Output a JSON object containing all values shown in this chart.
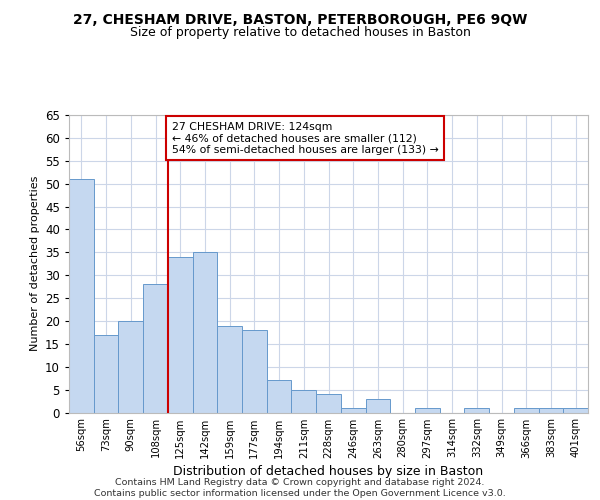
{
  "title": "27, CHESHAM DRIVE, BASTON, PETERBOROUGH, PE6 9QW",
  "subtitle": "Size of property relative to detached houses in Baston",
  "xlabel": "Distribution of detached houses by size in Baston",
  "ylabel": "Number of detached properties",
  "categories": [
    "56sqm",
    "73sqm",
    "90sqm",
    "108sqm",
    "125sqm",
    "142sqm",
    "159sqm",
    "177sqm",
    "194sqm",
    "211sqm",
    "228sqm",
    "246sqm",
    "263sqm",
    "280sqm",
    "297sqm",
    "314sqm",
    "332sqm",
    "349sqm",
    "366sqm",
    "383sqm",
    "401sqm"
  ],
  "values": [
    51,
    17,
    20,
    28,
    34,
    35,
    19,
    18,
    7,
    5,
    4,
    1,
    3,
    0,
    1,
    0,
    1,
    0,
    1,
    1,
    1
  ],
  "bar_color": "#c5d8f0",
  "bar_edge_color": "#6699cc",
  "reference_line_x": 4,
  "reference_line_color": "#cc0000",
  "annotation_text": "27 CHESHAM DRIVE: 124sqm\n← 46% of detached houses are smaller (112)\n54% of semi-detached houses are larger (133) →",
  "annotation_box_color": "#ffffff",
  "annotation_box_edge_color": "#cc0000",
  "ylim": [
    0,
    65
  ],
  "yticks": [
    0,
    5,
    10,
    15,
    20,
    25,
    30,
    35,
    40,
    45,
    50,
    55,
    60,
    65
  ],
  "footer": "Contains HM Land Registry data © Crown copyright and database right 2024.\nContains public sector information licensed under the Open Government Licence v3.0.",
  "bg_color": "#ffffff",
  "grid_color": "#ccd6e8"
}
